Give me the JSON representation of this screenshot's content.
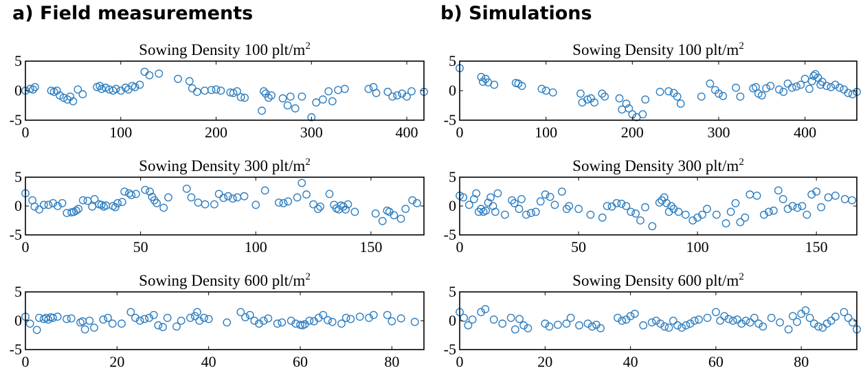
{
  "columns": [
    {
      "title": "a) Field measurements"
    },
    {
      "title": "b) Simulations"
    }
  ],
  "chart_data": [
    {
      "type": "scatter",
      "panel": "a-100",
      "title": "Sowing Density 100 plt/m",
      "title_sup": "2",
      "xlim": [
        0,
        418
      ],
      "ylim": [
        -5,
        5
      ],
      "xticks": [
        0,
        100,
        200,
        300,
        400
      ],
      "yticks": [
        5,
        0,
        -5
      ],
      "marker": "circle",
      "color": "#2f7fc1",
      "x": [
        0,
        5,
        8,
        10,
        27,
        30,
        33,
        36,
        40,
        44,
        47,
        50,
        55,
        60,
        75,
        78,
        80,
        84,
        88,
        92,
        95,
        100,
        105,
        108,
        112,
        115,
        120,
        125,
        130,
        140,
        160,
        172,
        175,
        180,
        188,
        195,
        200,
        205,
        215,
        218,
        222,
        226,
        230,
        248,
        250,
        252,
        255,
        258,
        270,
        275,
        278,
        283,
        290,
        300,
        305,
        312,
        318,
        322,
        328,
        335,
        360,
        365,
        368,
        380,
        385,
        390,
        395,
        400,
        405,
        418
      ],
      "y": [
        0,
        0.3,
        0.2,
        0.6,
        0,
        -0.2,
        0,
        -0.8,
        -1.2,
        -1.5,
        -1.0,
        -1.8,
        0.2,
        -0.6,
        0.6,
        0.8,
        0.3,
        0.5,
        0.2,
        0,
        0.3,
        0,
        0.5,
        0.2,
        0.8,
        0.6,
        1.0,
        3.2,
        2.6,
        2.9,
        2.0,
        1.6,
        0.4,
        -0.2,
        0,
        0.1,
        0.2,
        0,
        -0.3,
        -0.4,
        -0.1,
        -1.1,
        -1.2,
        -3.4,
        -0.1,
        -0.5,
        -1.2,
        -0.8,
        -1.3,
        -2.5,
        -1.0,
        -3.0,
        -1.0,
        -4.5,
        -2.0,
        -1.5,
        -0.1,
        -1.8,
        0.1,
        0.3,
        0.3,
        0.6,
        -0.4,
        -0.2,
        -1.0,
        -0.8,
        -0.5,
        -1.0,
        -0.1,
        -0.2
      ]
    },
    {
      "type": "scatter",
      "panel": "a-300",
      "title": "Sowing Density 300 plt/m",
      "title_sup": "2",
      "xlim": [
        0,
        173
      ],
      "ylim": [
        -5,
        5
      ],
      "xticks": [
        0,
        50,
        100,
        150
      ],
      "yticks": [
        5,
        0,
        -5
      ],
      "marker": "circle",
      "color": "#2f7fc1",
      "x": [
        0,
        3,
        4,
        6,
        8,
        10,
        12,
        14,
        16,
        18,
        20,
        21,
        22,
        23,
        25,
        27,
        29,
        30,
        32,
        33,
        34,
        35,
        38,
        39,
        40,
        42,
        43,
        45,
        46,
        48,
        52,
        54,
        55,
        56,
        57,
        60,
        62,
        70,
        72,
        75,
        78,
        82,
        84,
        86,
        88,
        90,
        92,
        95,
        100,
        104,
        110,
        112,
        114,
        118,
        120,
        122,
        125,
        127,
        128,
        132,
        134,
        135,
        136,
        137,
        138,
        139,
        140,
        143,
        152,
        155,
        157,
        158,
        160,
        163,
        165,
        168,
        170
      ],
      "y": [
        2.2,
        1.0,
        -0.1,
        -0.6,
        0.2,
        0.2,
        0.5,
        0,
        0.5,
        -1.2,
        -1.1,
        -1.0,
        -0.8,
        -0.5,
        1.0,
        0.9,
        -0.1,
        1.2,
        0.3,
        0.2,
        -0.1,
        0.1,
        0.0,
        -0.2,
        0.5,
        0.7,
        2.5,
        2.2,
        1.9,
        2.1,
        2.8,
        2.5,
        1.6,
        1.0,
        0.5,
        -0.3,
        1.5,
        3.0,
        1.5,
        0.6,
        0.3,
        0.3,
        2.1,
        1.4,
        1.7,
        1.3,
        1.5,
        1.7,
        0.2,
        2.7,
        0.6,
        0.5,
        0.8,
        1.5,
        4.0,
        2.0,
        0.3,
        -0.5,
        -0.1,
        2.1,
        0.2,
        -0.4,
        -0.6,
        0.1,
        -0.1,
        -0.6,
        0.3,
        -1.0,
        -1.3,
        -2.6,
        -0.8,
        -1.0,
        -1.6,
        -2.2,
        -0.5,
        1.0,
        0.5
      ]
    },
    {
      "type": "scatter",
      "panel": "a-600",
      "title": "Sowing Density 600 plt/m",
      "title_sup": "2",
      "xlim": [
        0,
        87
      ],
      "ylim": [
        -5,
        5
      ],
      "xticks": [
        0,
        20,
        40,
        60,
        80
      ],
      "yticks": [
        5,
        0,
        -5
      ],
      "marker": "circle",
      "color": "#2f7fc1",
      "x": [
        0,
        1,
        2.5,
        3,
        4,
        4.5,
        5,
        5.5,
        6,
        7,
        9,
        10,
        12,
        12.5,
        13,
        14,
        15,
        17,
        18,
        19,
        21,
        23,
        24,
        25,
        26,
        27,
        28,
        29,
        30,
        31,
        33,
        34,
        36,
        37,
        37.5,
        38,
        39,
        40,
        44,
        47,
        48,
        49,
        50,
        51,
        52,
        53,
        55,
        56,
        58,
        59,
        60,
        60.5,
        61,
        62,
        63,
        64,
        65,
        66,
        67,
        69,
        70,
        71,
        73,
        75,
        76,
        79,
        80,
        82,
        85
      ],
      "y": [
        0.7,
        -0.5,
        -1.6,
        0.5,
        0.3,
        0.5,
        0.2,
        0.6,
        0.5,
        0.7,
        0.3,
        0.4,
        -0.3,
        -0.1,
        -1.5,
        0,
        -1.2,
        0.2,
        0.5,
        -0.5,
        -0.5,
        1.5,
        0.5,
        0,
        0.3,
        0.5,
        1.0,
        -0.8,
        -1.1,
        0.5,
        -1.0,
        0,
        0.5,
        0.8,
        1.5,
        0,
        0.5,
        0.3,
        -0.3,
        1.5,
        0.6,
        1.0,
        0,
        -0.5,
        0,
        0.4,
        -0.5,
        -0.3,
        0,
        -0.5,
        -0.7,
        -0.8,
        -0.6,
        0,
        -0.1,
        0.5,
        1.0,
        0.1,
        -0.2,
        -0.5,
        0.5,
        0.3,
        0.7,
        0.5,
        1.0,
        1.0,
        -0.1,
        0.4,
        -0.2
      ]
    },
    {
      "type": "scatter",
      "panel": "b-100",
      "title": "Sowing Density 100 plt/m",
      "title_sup": "2",
      "xlim": [
        0,
        460
      ],
      "ylim": [
        -5,
        5
      ],
      "xticks": [
        0,
        100,
        200,
        300,
        400
      ],
      "yticks": [
        5,
        0,
        -5
      ],
      "marker": "circle",
      "color": "#2f7fc1",
      "x": [
        0,
        25,
        27,
        30,
        33,
        40,
        65,
        68,
        72,
        95,
        100,
        108,
        140,
        142,
        148,
        152,
        156,
        165,
        168,
        185,
        188,
        193,
        196,
        200,
        205,
        212,
        215,
        232,
        242,
        248,
        252,
        256,
        280,
        290,
        296,
        300,
        305,
        320,
        325,
        340,
        343,
        346,
        350,
        355,
        360,
        370,
        375,
        380,
        385,
        390,
        395,
        400,
        405,
        408,
        410,
        412,
        415,
        418,
        420,
        425,
        430,
        435,
        440,
        445,
        450,
        455,
        460
      ],
      "y": [
        3.8,
        2.3,
        1.5,
        2.0,
        1.4,
        1.0,
        1.3,
        1.2,
        0.8,
        0.3,
        0,
        -0.3,
        -0.5,
        -2.0,
        -1.5,
        -1.3,
        -2.0,
        -0.5,
        -1.0,
        -1.3,
        -3.2,
        -2.2,
        -3.0,
        -4.0,
        -4.5,
        -4.0,
        -1.5,
        -0.2,
        -0.1,
        -0.4,
        -1.0,
        -2.2,
        -1.0,
        1.2,
        0.1,
        -0.5,
        -0.9,
        0.5,
        -1.0,
        0.4,
        0.6,
        -0.5,
        -0.8,
        0.4,
        0.8,
        0.2,
        -0.2,
        1.2,
        0.5,
        0.7,
        1.0,
        2.0,
        0.3,
        1.6,
        2.5,
        2.8,
        2.2,
        1.0,
        1.5,
        0.8,
        0.6,
        1.0,
        0.5,
        0.2,
        -0.4,
        -0.6,
        -0.2
      ]
    },
    {
      "type": "scatter",
      "panel": "b-300",
      "title": "Sowing Density 300 plt/m",
      "title_sup": "2",
      "xlim": [
        0,
        167
      ],
      "ylim": [
        -5,
        5
      ],
      "xticks": [
        0,
        50,
        100,
        150
      ],
      "yticks": [
        5,
        0,
        -5
      ],
      "marker": "circle",
      "color": "#2f7fc1",
      "x": [
        0,
        1.5,
        4,
        6,
        7,
        8,
        9,
        10,
        11,
        12,
        13,
        14,
        15,
        16,
        19,
        22,
        23,
        25,
        26,
        28,
        30,
        32,
        34,
        36,
        38,
        40,
        43,
        45,
        46,
        50,
        55,
        60,
        62,
        64,
        66,
        68,
        70,
        72,
        74,
        76,
        78,
        81,
        84,
        85,
        86,
        87,
        88,
        89,
        90,
        92,
        95,
        98,
        100,
        102,
        104,
        108,
        112,
        114,
        116,
        118,
        120,
        122,
        125,
        128,
        130,
        132,
        134,
        136,
        138,
        140,
        142,
        144,
        146,
        148,
        150,
        152,
        155,
        158,
        162,
        165
      ],
      "y": [
        1.8,
        1.5,
        0.2,
        1.2,
        2.2,
        -1.0,
        -0.5,
        -1.0,
        -0.8,
        0.6,
        1.5,
        0,
        -1.0,
        2.2,
        -1.5,
        1.0,
        0.5,
        -0.5,
        1.2,
        -1.5,
        -1.2,
        -1.0,
        0.8,
        2.0,
        1.6,
        0.2,
        2.5,
        -0.5,
        0,
        -0.5,
        -1.5,
        -2.0,
        0,
        -0.1,
        0.5,
        0.4,
        0,
        -1.0,
        -1.3,
        -2.5,
        -0.2,
        -3.5,
        0.6,
        1.0,
        1.5,
        0.5,
        -1.0,
        0,
        -0.5,
        -1.0,
        -1.5,
        -2.5,
        -2.0,
        -1.5,
        -0.5,
        -1.5,
        -3.0,
        -1.0,
        0.5,
        -2.8,
        -2.0,
        2.0,
        1.8,
        -1.5,
        -1.0,
        -0.8,
        2.7,
        1.2,
        -0.5,
        0,
        -0.3,
        0,
        -1.5,
        2.0,
        2.5,
        -0.2,
        1.5,
        1.8,
        1.2,
        1.0
      ]
    },
    {
      "type": "scatter",
      "panel": "b-600",
      "title": "Sowing Density 600 plt/m",
      "title_sup": "2",
      "xlim": [
        0,
        93
      ],
      "ylim": [
        -5,
        5
      ],
      "xticks": [
        0,
        20,
        40,
        60,
        80
      ],
      "yticks": [
        5,
        0,
        -5
      ],
      "marker": "circle",
      "color": "#2f7fc1",
      "x": [
        0,
        1,
        2,
        3,
        5,
        6,
        8,
        10,
        12,
        13,
        14,
        15,
        16,
        20,
        21,
        23,
        25,
        26,
        28,
        30,
        31,
        32,
        33,
        37,
        38,
        39,
        40,
        41,
        43,
        45,
        46,
        47,
        48,
        49,
        50,
        51,
        52,
        53,
        54,
        55,
        56,
        58,
        60,
        61,
        62,
        63,
        64,
        65,
        66,
        67,
        68,
        69,
        70,
        71,
        73,
        75,
        77,
        78,
        79,
        80,
        81,
        82,
        83,
        84,
        85,
        86,
        87,
        88,
        90,
        91,
        92,
        93
      ],
      "y": [
        1.5,
        0.5,
        -0.8,
        0.2,
        1.5,
        2.0,
        0.2,
        -0.5,
        0.5,
        -1.5,
        0.3,
        -0.8,
        -1.3,
        -0.5,
        -1.0,
        -0.7,
        -0.5,
        0.5,
        -0.8,
        -0.5,
        -1.0,
        -0.7,
        -1.3,
        0.5,
        0,
        0.2,
        0.8,
        1.2,
        -0.8,
        -0.3,
        0,
        -0.5,
        -1.0,
        -1.2,
        0,
        -0.8,
        -1.2,
        -0.8,
        -0.5,
        0,
        0.2,
        0.5,
        1.5,
        0,
        0.8,
        0.3,
        0,
        0.2,
        -0.5,
        0,
        -0.3,
        0.5,
        -0.5,
        -1.0,
        0.5,
        -0.3,
        -1.5,
        0.8,
        -0.2,
        1.2,
        1.8,
        0.5,
        -0.5,
        -1.0,
        -1.2,
        -0.5,
        0,
        0.7,
        1.5,
        0.5,
        -0.3,
        -1.5
      ]
    }
  ]
}
